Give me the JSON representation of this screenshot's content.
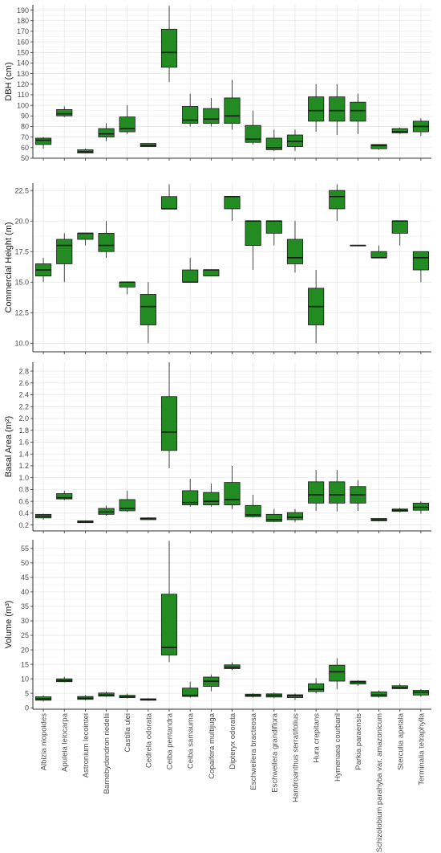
{
  "chart_data": [
    {
      "type": "boxplot",
      "ylabel": "DBH (cm)",
      "ylim": [
        50,
        195
      ],
      "yticks": [
        50,
        60,
        70,
        80,
        90,
        100,
        110,
        120,
        130,
        140,
        150,
        160,
        170,
        180,
        190
      ],
      "categories": [
        "Albizia niopoides",
        "Apuleia leiocarpa",
        "Astronium lecointei",
        "Barnebydendron riedelii",
        "Castilla ulei",
        "Cedrela odorata",
        "Ceiba pentandra",
        "Ceiba samauma",
        "Copaifera multijuga",
        "Dipteryx odorata",
        "Eschweilera bracteosa",
        "Eschweilera grandiflora",
        "Handroanthus serratifolius",
        "Hura crepitans",
        "Hymenaea courbaril",
        "Parkia paraensis",
        "Schizolobium parahyba var. amazonicum",
        "Sterculia apetala",
        "Terminalia tetraphylla"
      ],
      "boxes": [
        {
          "min": 59,
          "q1": 63,
          "median": 67,
          "q3": 69,
          "max": 70
        },
        {
          "min": 89,
          "q1": 90,
          "median": 92,
          "q3": 96,
          "max": 99
        },
        {
          "min": 55,
          "q1": 55,
          "median": 56,
          "q3": 58,
          "max": 59
        },
        {
          "min": 66,
          "q1": 70,
          "median": 73,
          "q3": 78,
          "max": 83
        },
        {
          "min": 73,
          "q1": 75,
          "median": 78,
          "q3": 89,
          "max": 100
        },
        {
          "min": 61,
          "q1": 61,
          "median": 62,
          "q3": 64,
          "max": 64
        },
        {
          "min": 122,
          "q1": 136,
          "median": 150,
          "q3": 172,
          "max": 194
        },
        {
          "min": 80,
          "q1": 83,
          "median": 86,
          "q3": 99,
          "max": 111
        },
        {
          "min": 80,
          "q1": 83,
          "median": 87,
          "q3": 97,
          "max": 107
        },
        {
          "min": 77,
          "q1": 83,
          "median": 90,
          "q3": 107,
          "max": 124
        },
        {
          "min": 63,
          "q1": 65,
          "median": 68,
          "q3": 81,
          "max": 95
        },
        {
          "min": 57,
          "q1": 58,
          "median": 60,
          "q3": 69,
          "max": 77
        },
        {
          "min": 57,
          "q1": 61,
          "median": 66,
          "q3": 72,
          "max": 77
        },
        {
          "min": 75,
          "q1": 85,
          "median": 95,
          "q3": 108,
          "max": 120
        },
        {
          "min": 72,
          "q1": 85,
          "median": 95,
          "q3": 108,
          "max": 120
        },
        {
          "min": 73,
          "q1": 85,
          "median": 95,
          "q3": 103,
          "max": 111
        },
        {
          "min": 58,
          "q1": 59,
          "median": 62,
          "q3": 63,
          "max": 63
        },
        {
          "min": 73,
          "q1": 74,
          "median": 75,
          "q3": 78,
          "max": 79
        },
        {
          "min": 71,
          "q1": 75,
          "median": 80,
          "q3": 85,
          "max": 88
        }
      ]
    },
    {
      "type": "boxplot",
      "ylabel": "Commercial Height (m)",
      "ylim": [
        9.3,
        23.1
      ],
      "yticks": [
        10.0,
        12.5,
        15.0,
        17.5,
        20.0,
        22.5
      ],
      "ytick_labels": [
        "10.0",
        "12.5",
        "15.0",
        "17.5",
        "20.0",
        "22.5"
      ],
      "boxes": [
        {
          "min": 15.0,
          "q1": 15.5,
          "median": 16.0,
          "q3": 16.5,
          "max": 17.0
        },
        {
          "min": 15.0,
          "q1": 16.5,
          "median": 18.0,
          "q3": 18.5,
          "max": 19.0
        },
        {
          "min": 18.0,
          "q1": 18.5,
          "median": 19.0,
          "q3": 19.0,
          "max": 19.0
        },
        {
          "min": 17.0,
          "q1": 17.5,
          "median": 18.0,
          "q3": 19.0,
          "max": 20.0
        },
        {
          "min": 14.0,
          "q1": 14.6,
          "median": 15.0,
          "q3": 15.0,
          "max": 15.0
        },
        {
          "min": 10.0,
          "q1": 11.5,
          "median": 13.0,
          "q3": 14.0,
          "max": 15.0
        },
        {
          "min": 21.0,
          "q1": 21.0,
          "median": 21.0,
          "q3": 22.0,
          "max": 23.0
        },
        {
          "min": 15.0,
          "q1": 15.0,
          "median": 15.0,
          "q3": 16.0,
          "max": 17.0
        },
        {
          "min": 15.5,
          "q1": 15.5,
          "median": 16.0,
          "q3": 16.0,
          "max": 16.0
        },
        {
          "min": 20.0,
          "q1": 21.0,
          "median": 22.0,
          "q3": 22.0,
          "max": 22.0
        },
        {
          "min": 16.0,
          "q1": 18.0,
          "median": 20.0,
          "q3": 20.0,
          "max": 20.0
        },
        {
          "min": 18.0,
          "q1": 19.0,
          "median": 20.0,
          "q3": 20.0,
          "max": 20.0
        },
        {
          "min": 15.8,
          "q1": 16.5,
          "median": 17.0,
          "q3": 18.5,
          "max": 20.0
        },
        {
          "min": 10.0,
          "q1": 11.5,
          "median": 13.0,
          "q3": 14.5,
          "max": 16.0
        },
        {
          "min": 20.0,
          "q1": 21.0,
          "median": 22.0,
          "q3": 22.5,
          "max": 23.0
        },
        {
          "min": 18.0,
          "q1": 18.0,
          "median": 18.0,
          "q3": 18.0,
          "max": 18.0
        },
        {
          "min": 17.0,
          "q1": 17.0,
          "median": 17.0,
          "q3": 17.5,
          "max": 18.0
        },
        {
          "min": 18.0,
          "q1": 19.0,
          "median": 20.0,
          "q3": 20.0,
          "max": 20.0
        },
        {
          "min": 15.0,
          "q1": 16.0,
          "median": 17.0,
          "q3": 17.5,
          "max": 17.5
        }
      ]
    },
    {
      "type": "boxplot",
      "ylabel": "Basal Area (m²)",
      "ylim": [
        0.1,
        2.95
      ],
      "yticks": [
        0.2,
        0.4,
        0.6,
        0.8,
        1.0,
        1.2,
        1.4,
        1.6,
        1.8,
        2.0,
        2.2,
        2.4,
        2.6,
        2.8
      ],
      "ytick_labels": [
        "0.2",
        "0.4",
        "0.6",
        "0.8",
        "1.0",
        "1.2",
        "1.4",
        "1.6",
        "1.8",
        "2.0",
        "2.2",
        "2.4",
        "2.6",
        "2.8"
      ],
      "boxes": [
        {
          "min": 0.29,
          "q1": 0.32,
          "median": 0.35,
          "q3": 0.38,
          "max": 0.39
        },
        {
          "min": 0.62,
          "q1": 0.64,
          "median": 0.66,
          "q3": 0.73,
          "max": 0.78
        },
        {
          "min": 0.24,
          "q1": 0.24,
          "median": 0.25,
          "q3": 0.27,
          "max": 0.28
        },
        {
          "min": 0.36,
          "q1": 0.38,
          "median": 0.42,
          "q3": 0.48,
          "max": 0.53
        },
        {
          "min": 0.42,
          "q1": 0.44,
          "median": 0.48,
          "q3": 0.63,
          "max": 0.78
        },
        {
          "min": 0.29,
          "q1": 0.29,
          "median": 0.31,
          "q3": 0.32,
          "max": 0.33
        },
        {
          "min": 1.16,
          "q1": 1.46,
          "median": 1.77,
          "q3": 2.37,
          "max": 2.95
        },
        {
          "min": 0.51,
          "q1": 0.54,
          "median": 0.58,
          "q3": 0.78,
          "max": 0.98
        },
        {
          "min": 0.51,
          "q1": 0.54,
          "median": 0.6,
          "q3": 0.75,
          "max": 0.9
        },
        {
          "min": 0.47,
          "q1": 0.54,
          "median": 0.63,
          "q3": 0.92,
          "max": 1.2
        },
        {
          "min": 0.33,
          "q1": 0.34,
          "median": 0.37,
          "q3": 0.53,
          "max": 0.71
        },
        {
          "min": 0.25,
          "q1": 0.26,
          "median": 0.29,
          "q3": 0.38,
          "max": 0.47
        },
        {
          "min": 0.25,
          "q1": 0.29,
          "median": 0.33,
          "q3": 0.41,
          "max": 0.47
        },
        {
          "min": 0.44,
          "q1": 0.57,
          "median": 0.71,
          "q3": 0.93,
          "max": 1.13
        },
        {
          "min": 0.43,
          "q1": 0.57,
          "median": 0.71,
          "q3": 0.93,
          "max": 1.13
        },
        {
          "min": 0.44,
          "q1": 0.57,
          "median": 0.71,
          "q3": 0.85,
          "max": 0.96
        },
        {
          "min": 0.26,
          "q1": 0.27,
          "median": 0.29,
          "q3": 0.31,
          "max": 0.31
        },
        {
          "min": 0.41,
          "q1": 0.43,
          "median": 0.45,
          "q3": 0.47,
          "max": 0.49
        },
        {
          "min": 0.39,
          "q1": 0.45,
          "median": 0.5,
          "q3": 0.57,
          "max": 0.6
        }
      ]
    },
    {
      "type": "boxplot",
      "ylabel": "Volume (m³)",
      "ylim": [
        -0.5,
        58
      ],
      "yticks": [
        0,
        5,
        10,
        15,
        20,
        25,
        30,
        35,
        40,
        45,
        50,
        55
      ],
      "boxes": [
        {
          "min": 2.2,
          "q1": 2.6,
          "median": 3.1,
          "q3": 3.8,
          "max": 4.3
        },
        {
          "min": 8.8,
          "q1": 9.0,
          "median": 9.4,
          "q3": 10.0,
          "max": 10.7
        },
        {
          "min": 2.5,
          "q1": 2.9,
          "median": 3.3,
          "q3": 3.9,
          "max": 4.4
        },
        {
          "min": 3.8,
          "q1": 4.0,
          "median": 4.4,
          "q3": 5.1,
          "max": 5.6
        },
        {
          "min": 3.2,
          "q1": 3.5,
          "median": 3.8,
          "q3": 4.3,
          "max": 4.9
        },
        {
          "min": 2.4,
          "q1": 2.6,
          "median": 2.9,
          "q3": 3.1,
          "max": 3.3
        },
        {
          "min": 15.8,
          "q1": 18.2,
          "median": 20.8,
          "q3": 39.2,
          "max": 57.6
        },
        {
          "min": 3.5,
          "q1": 3.9,
          "median": 4.3,
          "q3": 6.8,
          "max": 9.0
        },
        {
          "min": 5.7,
          "q1": 7.4,
          "median": 9.2,
          "q3": 10.6,
          "max": 11.5
        },
        {
          "min": 13.0,
          "q1": 13.5,
          "median": 14.0,
          "q3": 14.8,
          "max": 15.7
        },
        {
          "min": 3.5,
          "q1": 3.9,
          "median": 4.3,
          "q3": 4.7,
          "max": 5.0
        },
        {
          "min": 3.3,
          "q1": 3.7,
          "median": 4.3,
          "q3": 4.8,
          "max": 5.3
        },
        {
          "min": 2.7,
          "q1": 3.5,
          "median": 4.2,
          "q3": 4.5,
          "max": 4.9
        },
        {
          "min": 4.9,
          "q1": 5.6,
          "median": 6.4,
          "q3": 8.3,
          "max": 10.2
        },
        {
          "min": 6.4,
          "q1": 9.2,
          "median": 12.4,
          "q3": 14.7,
          "max": 17.1
        },
        {
          "min": 7.6,
          "q1": 8.2,
          "median": 8.9,
          "q3": 9.2,
          "max": 9.5
        },
        {
          "min": 3.5,
          "q1": 3.9,
          "median": 4.4,
          "q3": 5.5,
          "max": 6.0
        },
        {
          "min": 6.4,
          "q1": 6.6,
          "median": 6.9,
          "q3": 7.6,
          "max": 8.3
        },
        {
          "min": 3.8,
          "q1": 4.4,
          "median": 5.4,
          "q3": 6.0,
          "max": 6.4
        }
      ]
    }
  ],
  "colors": {
    "box_fill": "#228b22",
    "box_stroke": "#1a1a1a",
    "grid_major": "#e4e4e4",
    "grid_minor": "#f2f2f2",
    "axis": "#333333",
    "tick_label": "#4d4d4d"
  }
}
